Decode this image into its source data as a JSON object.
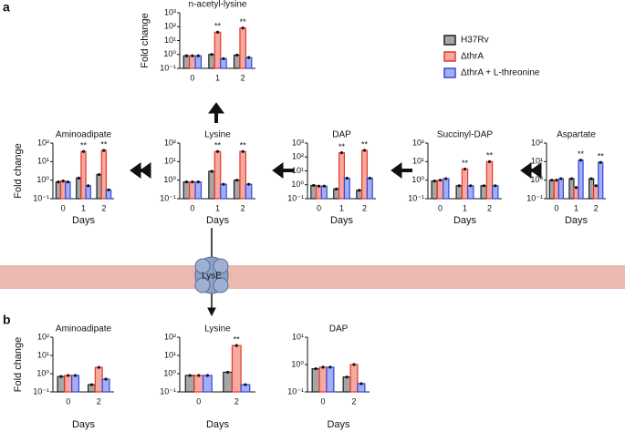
{
  "panel_labels": [
    "a",
    "b"
  ],
  "transporter": "LysE",
  "legend": [
    {
      "name": "H37Rv",
      "color": "#a6a6a6",
      "edgecolor": "#222222"
    },
    {
      "name": "ΔthrA",
      "color": "#f6a99e",
      "edgecolor": "#e8372c"
    },
    {
      "name": "ΔthrA + L-threonine",
      "color": "#a3aff2",
      "edgecolor": "#3447dc"
    }
  ],
  "chart_data": [
    {
      "type": "bar",
      "title": "n-acetyl-lysine",
      "ylabel": "Fold change",
      "log_y": true,
      "categories": [
        "0",
        "1",
        "2"
      ],
      "ylim": [
        0.1,
        1000
      ],
      "yticks": [
        {
          "value": 0.1,
          "label": "10⁻¹"
        },
        {
          "value": 1,
          "label": "10⁰"
        },
        {
          "value": 10,
          "label": "10¹"
        },
        {
          "value": 100,
          "label": "10²"
        },
        {
          "value": 1000,
          "label": "10³"
        }
      ],
      "series": [
        {
          "values": [
            0.8,
            1.0,
            0.9
          ]
        },
        {
          "values": [
            0.8,
            40,
            80
          ],
          "stars": [
            null,
            "**",
            "**"
          ]
        },
        {
          "values": [
            0.8,
            0.5,
            0.6
          ]
        }
      ]
    },
    {
      "type": "bar",
      "title": "Aminoadipate",
      "ylabel": "Fold change",
      "xlabel": "Days",
      "log_y": true,
      "categories": [
        "0",
        "1",
        "2"
      ],
      "ylim": [
        0.1,
        100
      ],
      "yticks": [
        {
          "value": 0.1,
          "label": "10⁻¹"
        },
        {
          "value": 1,
          "label": "10⁰"
        },
        {
          "value": 10,
          "label": "10¹"
        },
        {
          "value": 100,
          "label": "10²"
        }
      ],
      "series": [
        {
          "values": [
            0.8,
            1.3,
            2.0
          ]
        },
        {
          "values": [
            0.9,
            35,
            40
          ],
          "stars": [
            null,
            "**",
            "**"
          ]
        },
        {
          "values": [
            0.8,
            0.5,
            0.3
          ]
        }
      ]
    },
    {
      "type": "bar",
      "title": "Lysine",
      "xlabel": "Days",
      "log_y": true,
      "categories": [
        "0",
        "1",
        "2"
      ],
      "ylim": [
        0.1,
        100
      ],
      "yticks": [
        {
          "value": 0.1,
          "label": "10⁻¹"
        },
        {
          "value": 1,
          "label": "10⁰"
        },
        {
          "value": 10,
          "label": "10¹"
        },
        {
          "value": 100,
          "label": "10²"
        }
      ],
      "series": [
        {
          "values": [
            0.8,
            3.0,
            1.0
          ]
        },
        {
          "values": [
            0.8,
            35,
            35
          ],
          "stars": [
            null,
            "**",
            "**"
          ]
        },
        {
          "values": [
            0.8,
            0.6,
            0.6
          ]
        }
      ]
    },
    {
      "type": "bar",
      "title": "DAP",
      "xlabel": "Days",
      "log_y": true,
      "categories": [
        "0",
        "1",
        "2"
      ],
      "ylim": [
        0.1,
        1000
      ],
      "yticks": [
        {
          "value": 0.1,
          "label": "10⁻¹"
        },
        {
          "value": 1,
          "label": "10⁰"
        },
        {
          "value": 10,
          "label": "10¹"
        },
        {
          "value": 100,
          "label": "10²"
        },
        {
          "value": 1000,
          "label": "10³"
        }
      ],
      "series": [
        {
          "values": [
            0.9,
            0.5,
            0.4
          ]
        },
        {
          "values": [
            0.8,
            200,
            300
          ],
          "stars": [
            null,
            "**",
            "**"
          ]
        },
        {
          "values": [
            0.8,
            3,
            3
          ]
        }
      ]
    },
    {
      "type": "bar",
      "title": "Succinyl-DAP",
      "xlabel": "Days",
      "log_y": true,
      "categories": [
        "0",
        "1",
        "2"
      ],
      "ylim": [
        0.1,
        100
      ],
      "yticks": [
        {
          "value": 0.1,
          "label": "10⁻¹"
        },
        {
          "value": 1,
          "label": "10⁰"
        },
        {
          "value": 10,
          "label": "10¹"
        },
        {
          "value": 100,
          "label": "10²"
        }
      ],
      "series": [
        {
          "values": [
            0.9,
            0.5,
            0.5
          ]
        },
        {
          "values": [
            1.0,
            4,
            10
          ],
          "stars": [
            null,
            "**",
            "**"
          ]
        },
        {
          "values": [
            1.2,
            0.5,
            0.5
          ]
        }
      ]
    },
    {
      "type": "bar",
      "title": "Aspartate",
      "xlabel": "Days",
      "log_y": true,
      "categories": [
        "0",
        "1",
        "2"
      ],
      "ylim": [
        0.1,
        100
      ],
      "yticks": [
        {
          "value": 0.1,
          "label": "10⁻¹"
        },
        {
          "value": 1,
          "label": "10⁰"
        },
        {
          "value": 10,
          "label": "10¹"
        },
        {
          "value": 100,
          "label": "10²"
        }
      ],
      "series": [
        {
          "values": [
            1.0,
            1.2,
            1.2
          ]
        },
        {
          "values": [
            1.0,
            0.4,
            0.5
          ]
        },
        {
          "values": [
            1.2,
            12,
            9
          ],
          "stars": [
            null,
            "**",
            "**"
          ]
        }
      ]
    },
    {
      "type": "bar",
      "title": "Aminoadipate",
      "ylabel": "Fold change",
      "xlabel": "Days",
      "log_y": true,
      "categories": [
        "0",
        "2"
      ],
      "ylim": [
        0.1,
        100
      ],
      "yticks": [
        {
          "value": 0.1,
          "label": "10⁻¹"
        },
        {
          "value": 1,
          "label": "10⁰"
        },
        {
          "value": 10,
          "label": "10¹"
        },
        {
          "value": 100,
          "label": "10²"
        }
      ],
      "series": [
        {
          "values": [
            0.7,
            0.25
          ]
        },
        {
          "values": [
            0.8,
            2.2
          ]
        },
        {
          "values": [
            0.8,
            0.5
          ]
        }
      ]
    },
    {
      "type": "bar",
      "title": "Lysine",
      "xlabel": "Days",
      "log_y": true,
      "categories": [
        "0",
        "2"
      ],
      "ylim": [
        0.1,
        100
      ],
      "yticks": [
        {
          "value": 0.1,
          "label": "10⁻¹"
        },
        {
          "value": 1,
          "label": "10⁰"
        },
        {
          "value": 10,
          "label": "10¹"
        },
        {
          "value": 100,
          "label": "10²"
        }
      ],
      "series": [
        {
          "values": [
            0.8,
            1.2
          ]
        },
        {
          "values": [
            0.8,
            35
          ],
          "stars": [
            null,
            "**"
          ]
        },
        {
          "values": [
            0.8,
            0.25
          ]
        }
      ]
    },
    {
      "type": "bar",
      "title": "DAP",
      "xlabel": "Days",
      "log_y": true,
      "categories": [
        "0",
        "2"
      ],
      "ylim": [
        0.1,
        10
      ],
      "yticks": [
        {
          "value": 0.1,
          "label": "10⁻¹"
        },
        {
          "value": 1,
          "label": "10⁰"
        },
        {
          "value": 10,
          "label": "10¹"
        }
      ],
      "series": [
        {
          "values": [
            0.7,
            0.35
          ]
        },
        {
          "values": [
            0.8,
            1.0
          ]
        },
        {
          "values": [
            0.8,
            0.2
          ]
        }
      ]
    }
  ]
}
